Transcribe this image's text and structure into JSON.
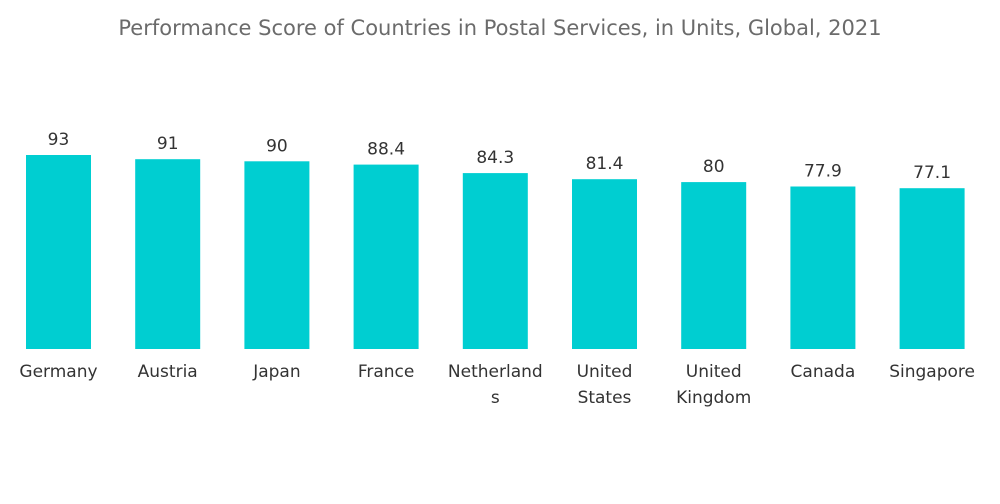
{
  "chart_data": {
    "type": "bar",
    "title": "Performance Score of Countries in Postal Services, in Units, Global, 2021",
    "xlabel": "",
    "ylabel": "",
    "categories": [
      [
        "Germany"
      ],
      [
        "Austria"
      ],
      [
        "Japan"
      ],
      [
        "France"
      ],
      [
        "Netherland",
        "s"
      ],
      [
        "United",
        "States"
      ],
      [
        "United",
        "Kingdom"
      ],
      [
        "Canada"
      ],
      [
        "Singapore"
      ]
    ],
    "values": [
      93,
      91,
      90,
      88.4,
      84.3,
      81.4,
      80,
      77.9,
      77.1
    ],
    "value_labels": [
      "93",
      "91",
      "90",
      "88.4",
      "84.3",
      "81.4",
      "80",
      "77.9",
      "77.1"
    ],
    "ylim": [
      0,
      93
    ],
    "grid": false,
    "legend": "none",
    "colors": {
      "bar": "#00ced1",
      "title": "#6b6b6b",
      "label": "#333333"
    }
  }
}
